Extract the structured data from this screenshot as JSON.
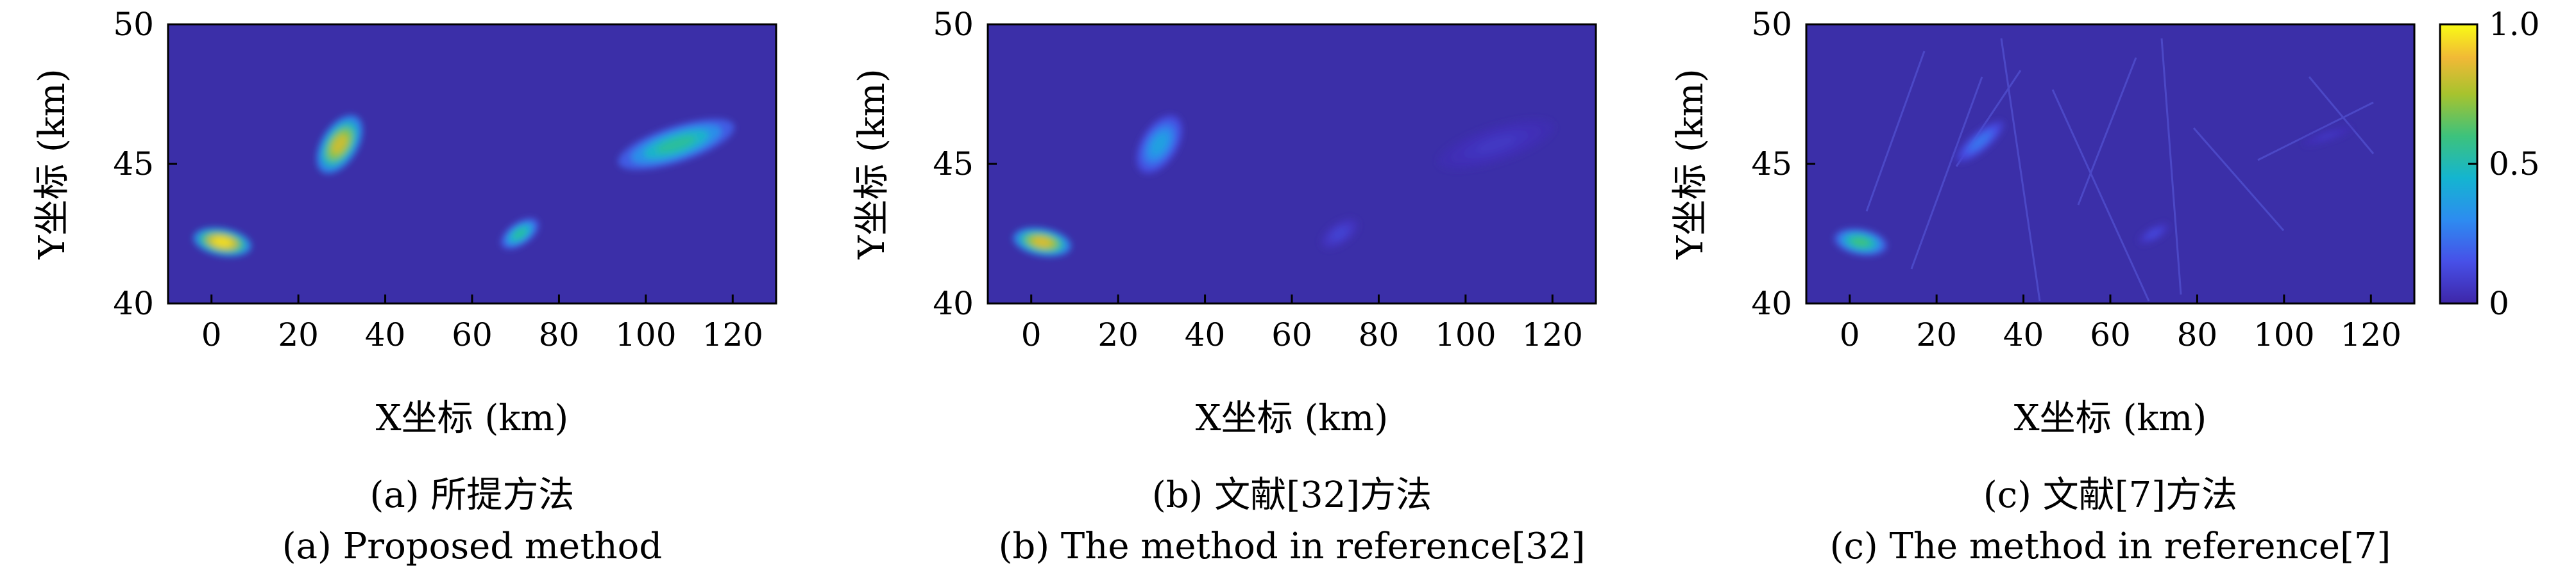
{
  "figure": {
    "colors": {
      "background": "#3b2fa8",
      "frame": "#000000"
    }
  },
  "chart_data": [
    {
      "type": "heatmap",
      "xlabel": "X坐标 (km)",
      "ylabel": "Y坐标 (km)",
      "xlim": [
        -10,
        130
      ],
      "ylim": [
        40,
        50
      ],
      "xticks": [
        "0",
        "20",
        "40",
        "60",
        "80",
        "100",
        "120"
      ],
      "yticks": [
        "40",
        "45",
        "50"
      ],
      "caption_cn": "(a) 所提方法",
      "caption_en": "(a) Proposed method",
      "blobs": [
        {
          "x": 2.5,
          "y": 42.2,
          "rx": 3.2,
          "ry": 2.1,
          "angle": 80,
          "peak": 0.95
        },
        {
          "x": 29.5,
          "y": 45.7,
          "rx": 7.5,
          "ry": 1.3,
          "angle": 58,
          "peak": 0.82
        },
        {
          "x": 71,
          "y": 42.5,
          "rx": 5.0,
          "ry": 0.8,
          "angle": 35,
          "peak": 0.55
        },
        {
          "x": 107,
          "y": 45.7,
          "rx": 14,
          "ry": 1.3,
          "angle": 18,
          "peak": 0.55
        }
      ]
    },
    {
      "type": "heatmap",
      "xlabel": "X坐标 (km)",
      "ylabel": "Y坐标 (km)",
      "xlim": [
        -10,
        130
      ],
      "ylim": [
        40,
        50
      ],
      "xticks": [
        "0",
        "20",
        "40",
        "60",
        "80",
        "100",
        "120"
      ],
      "yticks": [
        "40",
        "45",
        "50"
      ],
      "caption_cn": "(b) 文献[32]方法",
      "caption_en": "(b) The method in reference[32]",
      "blobs": [
        {
          "x": 2.5,
          "y": 42.2,
          "rx": 3.2,
          "ry": 2.1,
          "angle": 80,
          "peak": 0.85
        },
        {
          "x": 29.5,
          "y": 45.7,
          "rx": 7.5,
          "ry": 1.3,
          "angle": 58,
          "peak": 0.38
        },
        {
          "x": 71,
          "y": 42.5,
          "rx": 5.0,
          "ry": 0.8,
          "angle": 35,
          "peak": 0.1
        },
        {
          "x": 107,
          "y": 45.7,
          "rx": 14,
          "ry": 1.3,
          "angle": 18,
          "peak": 0.06
        }
      ]
    },
    {
      "type": "heatmap",
      "xlabel": "X坐标 (km)",
      "ylabel": "Y坐标 (km)",
      "xlim": [
        -10,
        130
      ],
      "ylim": [
        40,
        50
      ],
      "xticks": [
        "0",
        "20",
        "40",
        "60",
        "80",
        "100",
        "120"
      ],
      "yticks": [
        "40",
        "45",
        "50"
      ],
      "caption_cn": "(c) 文献[7]方法",
      "caption_en": "(c) The method in reference[7]",
      "blobs": [
        {
          "x": 2.5,
          "y": 42.2,
          "rx": 3.0,
          "ry": 1.9,
          "angle": 80,
          "peak": 0.6
        },
        {
          "x": 30,
          "y": 45.8,
          "rx": 7.0,
          "ry": 0.7,
          "angle": 40,
          "peak": 0.25
        },
        {
          "x": 70,
          "y": 42.5,
          "rx": 4.0,
          "ry": 0.5,
          "angle": 30,
          "peak": 0.12
        },
        {
          "x": 110,
          "y": 46.0,
          "rx": 6.0,
          "ry": 0.4,
          "angle": 18,
          "peak": 0.06
        }
      ],
      "colorbar": {
        "ticks": [
          "0",
          "0.5",
          "1.0"
        ],
        "range": [
          0,
          1
        ]
      }
    }
  ]
}
